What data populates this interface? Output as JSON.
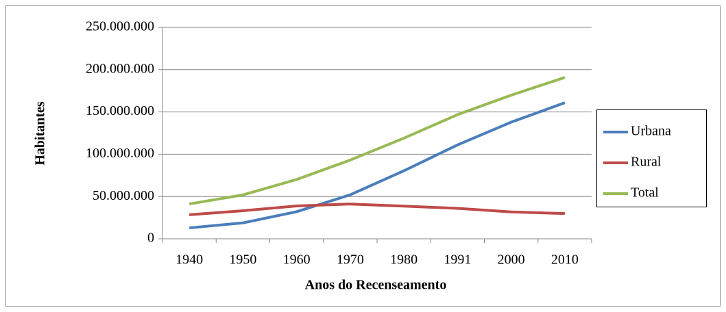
{
  "chart_data": {
    "type": "line",
    "y_label": "Habitantes",
    "x_label": "Anos do Recenseamento",
    "categories": [
      "1940",
      "1950",
      "1960",
      "1970",
      "1980",
      "1991",
      "2000",
      "2010"
    ],
    "series": [
      {
        "name": "Urbana",
        "color": "#4a7ebb",
        "values": [
          12900000,
          18800000,
          32000000,
          52000000,
          80400000,
          111000000,
          137900000,
          160900000
        ]
      },
      {
        "name": "Rural",
        "color": "#be4b48",
        "values": [
          28400000,
          33200000,
          38800000,
          41100000,
          38600000,
          36000000,
          31800000,
          29800000
        ]
      },
      {
        "name": "Total",
        "color": "#98b954",
        "values": [
          41200000,
          51900000,
          70100000,
          93100000,
          119000000,
          146800000,
          169800000,
          190800000
        ]
      }
    ],
    "ylim": [
      0,
      250000000
    ],
    "yticks": [
      0,
      {
        "value": 50000000,
        "label": "50.000.000"
      },
      {
        "value": 100000000,
        "label": "100.000.000"
      },
      {
        "value": 150000000,
        "label": "150.000.000"
      },
      {
        "value": 200000000,
        "label": "200.000.000"
      },
      {
        "value": 250000000,
        "label": "250.000.000"
      }
    ],
    "grid": true,
    "legend": "right"
  }
}
